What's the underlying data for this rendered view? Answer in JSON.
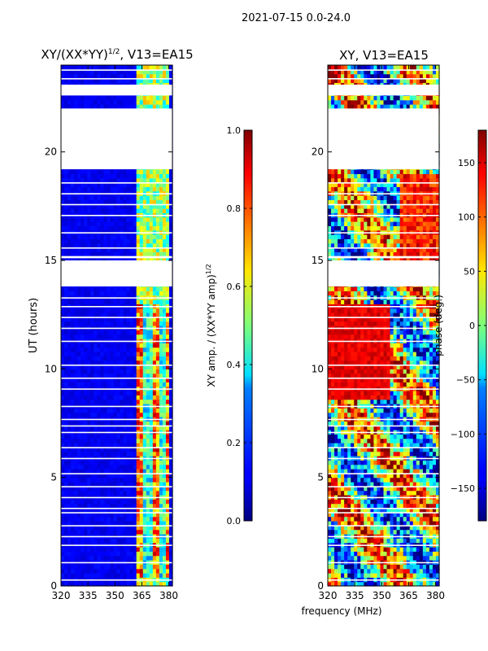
{
  "suptitle": "2021-07-15 0.0-24.0",
  "chart_data": [
    {
      "type": "heatmap",
      "title": "XY/(XX*YY)",
      "title_exponent": "1/2",
      "title_suffix": ", V13=EA15",
      "xlabel": "",
      "ylabel": "UT (hours)",
      "xlim": [
        320,
        382
      ],
      "ylim": [
        0,
        24
      ],
      "xticks": [
        "320",
        "335",
        "350",
        "365",
        "380"
      ],
      "xtick_values": [
        320,
        335,
        350,
        365,
        380
      ],
      "yticks": [
        "0",
        "5",
        "10",
        "15",
        "20"
      ],
      "ytick_values": [
        0,
        5,
        10,
        15,
        20
      ],
      "colorbar": {
        "label": "XY amp. / (XX*YY amp)",
        "label_exponent": "1/2",
        "range": [
          0.0,
          1.0
        ],
        "ticks": [
          "0.0",
          "0.2",
          "0.4",
          "0.6",
          "0.8",
          "1.0"
        ],
        "tick_values": [
          0.0,
          0.2,
          0.4,
          0.6,
          0.8,
          1.0
        ],
        "colormap": "jet"
      },
      "blank_ut_ranges": [
        [
          13.8,
          15.0
        ],
        [
          15.1,
          15.2
        ],
        [
          19.2,
          22.0
        ],
        [
          22.6,
          23.1
        ]
      ],
      "description_values": "mostly ~0.1 background; high (0.5-0.9) in 362-380 MHz band"
    },
    {
      "type": "heatmap",
      "title": "XY, V13=EA15",
      "xlabel": "frequency (MHz)",
      "ylabel": "",
      "xlim": [
        320,
        382
      ],
      "ylim": [
        0,
        24
      ],
      "xticks": [
        "320",
        "335",
        "350",
        "365",
        "380"
      ],
      "xtick_values": [
        320,
        335,
        350,
        365,
        380
      ],
      "yticks": [
        "0",
        "5",
        "10",
        "15",
        "20"
      ],
      "ytick_values": [
        0,
        5,
        10,
        15,
        20
      ],
      "colorbar": {
        "label": "phase (deg.)",
        "range": [
          -180,
          180
        ],
        "ticks": [
          "−150",
          "−100",
          "−50",
          "0",
          "50",
          "100",
          "150"
        ],
        "tick_values": [
          -150,
          -100,
          -50,
          0,
          50,
          100,
          150
        ],
        "colormap": "jet"
      },
      "blank_ut_ranges": [
        [
          13.8,
          15.0
        ],
        [
          15.1,
          15.2
        ],
        [
          19.2,
          22.0
        ],
        [
          22.6,
          23.1
        ]
      ]
    }
  ],
  "colors": {
    "jet_low": "#00007f",
    "jet_high": "#7f0000"
  }
}
